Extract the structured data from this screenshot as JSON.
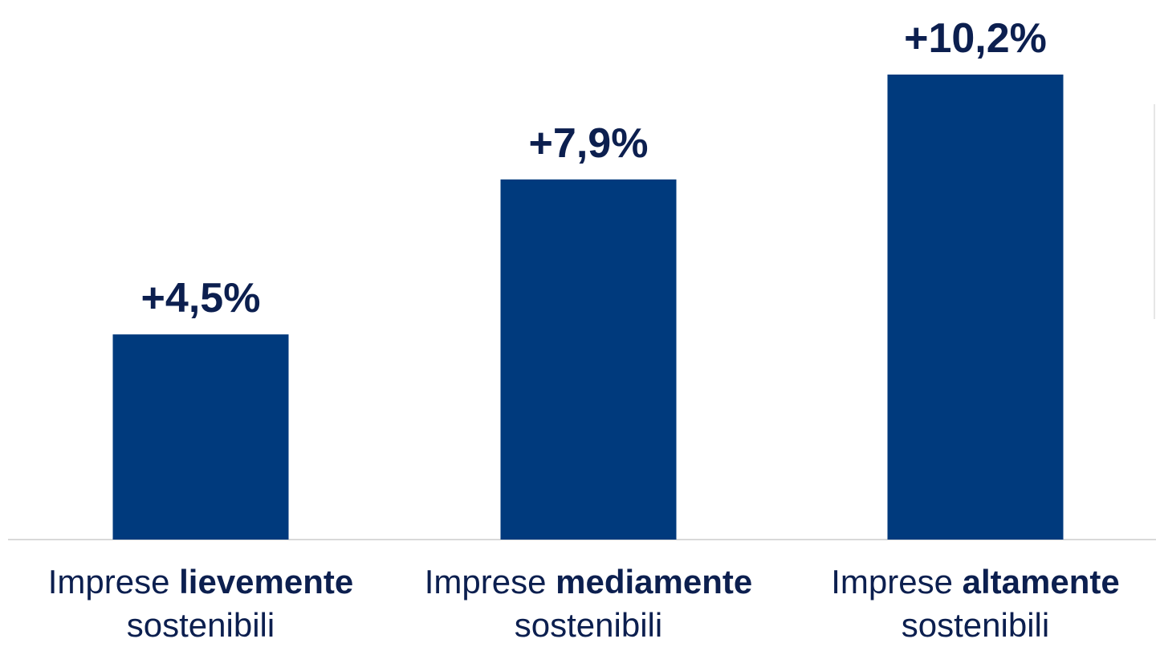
{
  "chart_data": {
    "type": "bar",
    "title": "",
    "xlabel": "",
    "ylabel": "",
    "categories": [
      {
        "prefix": "Imprese",
        "emphasis": "lievemente",
        "suffix": "sostenibili"
      },
      {
        "prefix": "Imprese",
        "emphasis": "mediamente",
        "suffix": "sostenibili"
      },
      {
        "prefix": "Imprese",
        "emphasis": "altamente",
        "suffix": "sostenibili"
      }
    ],
    "values": [
      4.5,
      7.9,
      10.2
    ],
    "data_labels": [
      "+4,5%",
      "+7,9%",
      "+10,2%"
    ],
    "ylim": [
      0,
      10.9
    ],
    "grid": false,
    "legend": "none",
    "colors": {
      "bar": "#003a7d",
      "data_label": "#0c1f4f",
      "axis": "#d9d9d9"
    }
  }
}
